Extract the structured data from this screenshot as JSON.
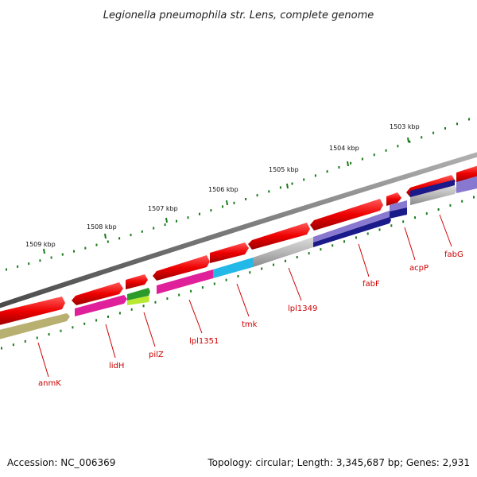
{
  "title": "Legionella pneumophila str. Lens, complete genome",
  "footer": {
    "accession": "Accession: NC_006369",
    "topology": "Topology: circular; Length: 3,345,687 bp; Genes: 2,931"
  },
  "kbp_labels": [
    "1503 kbp",
    "1504 kbp",
    "1505 kbp",
    "1506 kbp",
    "1507 kbp",
    "1508 kbp",
    "1509 kbp"
  ],
  "gene_labels": [
    "fabG",
    "acpP",
    "fabF",
    "lpl1349",
    "tmk",
    "lpl1351",
    "pilZ",
    "lidH",
    "anmK"
  ],
  "colors": {
    "backbone": "#7a7a7a",
    "forward_cds": "#ee0000",
    "label": "#cc0000",
    "tick": "#1a7a1a",
    "dark_blue": "#1a1a8a",
    "light_purple": "#8878d0",
    "grey": "#b8b8b8",
    "cyan": "#22b8e8",
    "magenta": "#e0209a",
    "green": "#2a9a2a",
    "yellow_green": "#b8e830",
    "olive": "#b8b070"
  }
}
